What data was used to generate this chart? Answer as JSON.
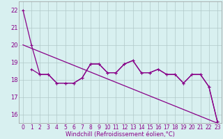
{
  "xlabel": "Windchill (Refroidissement éolien,°C)",
  "wavy_x": [
    0,
    1,
    2,
    3,
    4,
    5,
    6,
    7,
    8,
    9,
    10,
    11,
    12,
    13,
    14,
    15,
    16,
    17,
    18,
    19,
    20,
    21,
    22,
    23
  ],
  "wavy_y": [
    22.0,
    20.0,
    18.3,
    18.3,
    17.8,
    17.8,
    17.8,
    18.1,
    18.9,
    18.9,
    18.4,
    18.4,
    18.9,
    19.1,
    18.4,
    18.4,
    18.6,
    18.3,
    18.3,
    17.8,
    18.3,
    18.3,
    17.6,
    15.6
  ],
  "flat_x": [
    1,
    2,
    3,
    4,
    5,
    6,
    7,
    8,
    9,
    10,
    11,
    12,
    13,
    14,
    15,
    16,
    17,
    18,
    19,
    20,
    21,
    22,
    23
  ],
  "flat_y": [
    18.6,
    18.3,
    18.3,
    17.8,
    17.8,
    17.8,
    18.1,
    18.9,
    18.9,
    18.4,
    18.4,
    18.9,
    19.1,
    18.4,
    18.4,
    18.6,
    18.3,
    18.3,
    17.8,
    18.3,
    18.3,
    17.6,
    15.6
  ],
  "trend_x": [
    0,
    23
  ],
  "trend_y": [
    20.0,
    15.5
  ],
  "color": "#880088",
  "bg_color": "#d8f0f0",
  "grid_color": "#b0c8c8",
  "ylim": [
    15.5,
    22.5
  ],
  "yticks": [
    16,
    17,
    18,
    19,
    20,
    21,
    22
  ],
  "xticks": [
    0,
    1,
    2,
    3,
    4,
    5,
    6,
    7,
    8,
    9,
    10,
    11,
    12,
    13,
    14,
    15,
    16,
    17,
    18,
    19,
    20,
    21,
    22,
    23
  ],
  "tick_fontsize": 5.5,
  "xlabel_fontsize": 6.0,
  "marker_size": 3,
  "linewidth": 0.9
}
